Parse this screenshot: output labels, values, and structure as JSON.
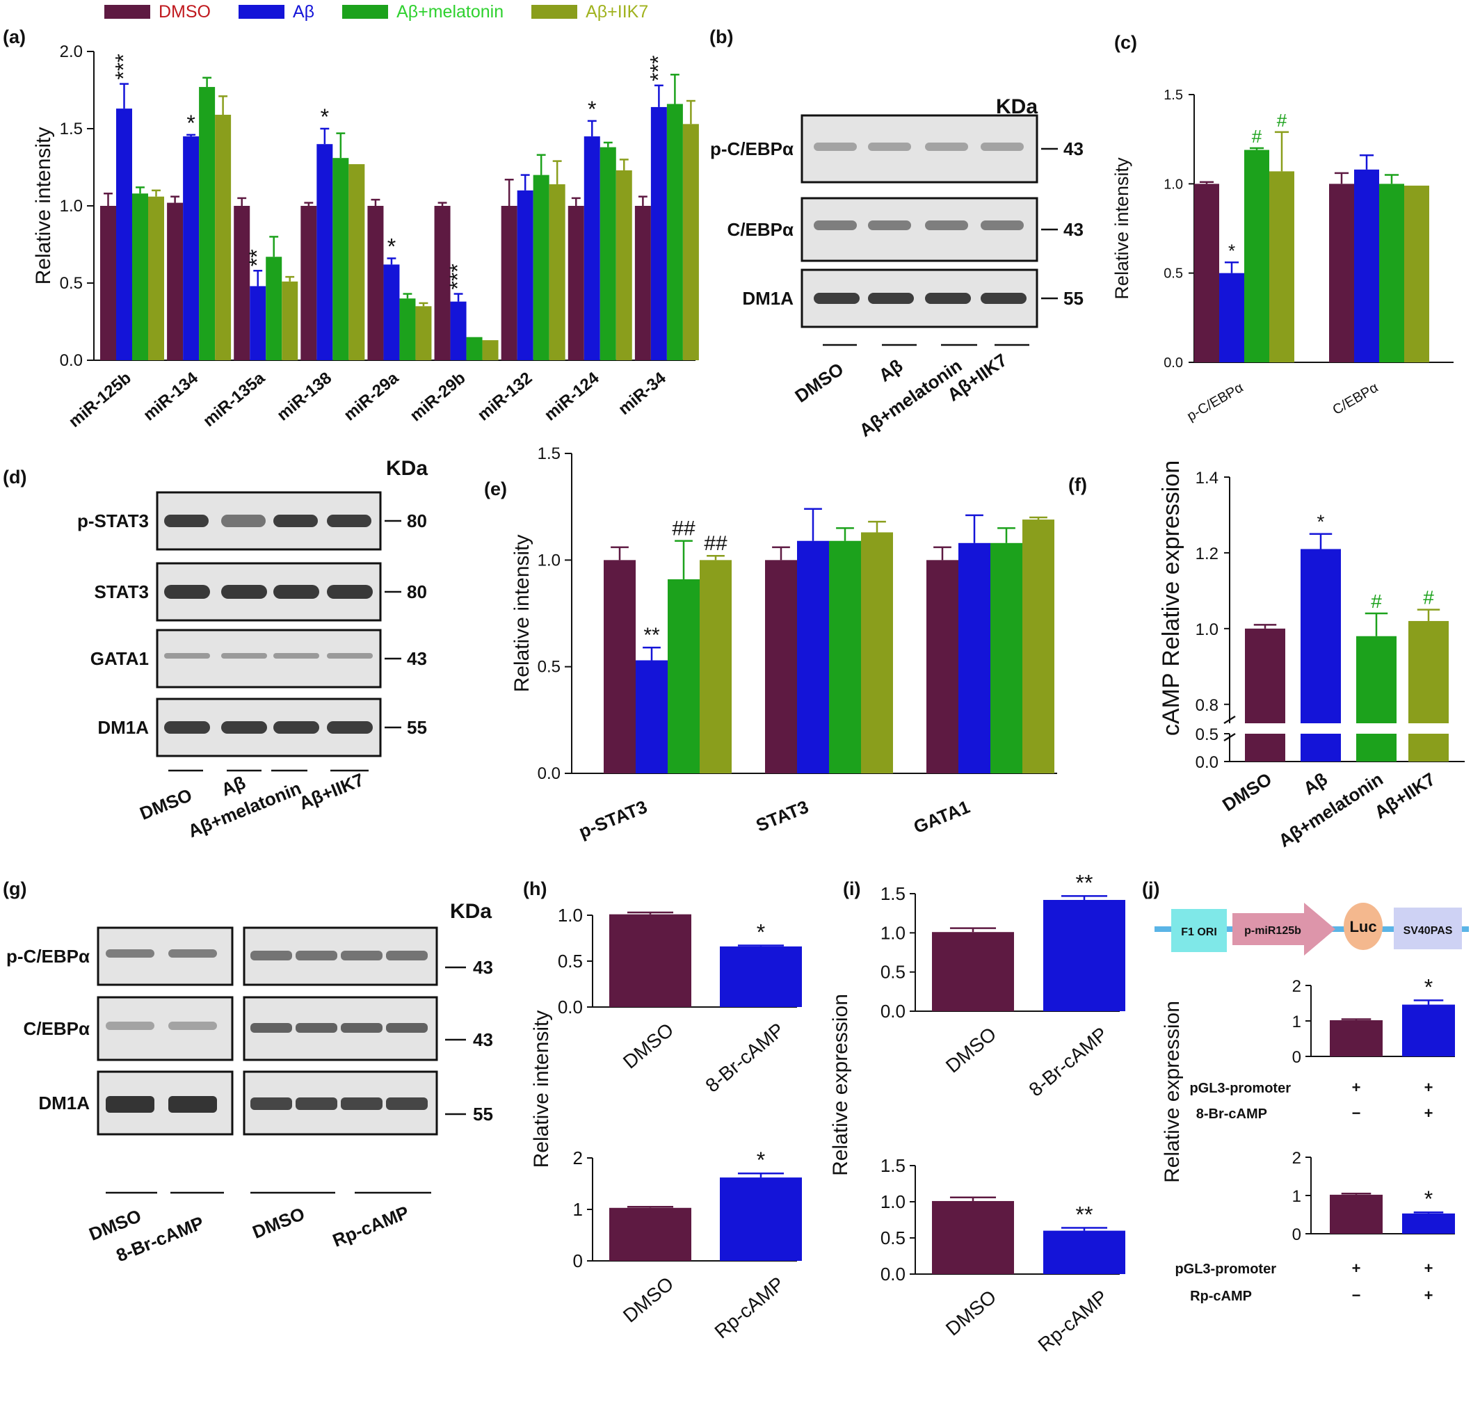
{
  "colors": {
    "DMSO": "#5e1a42",
    "Abeta": "#1414d8",
    "Abeta_melatonin": "#1ca21c",
    "Abeta_IIK7": "#8a9e1c",
    "DMSO_text": "#c0191e",
    "Abeta_text": "#1414d8",
    "Abeta_melatonin_text": "#2fd12f",
    "Abeta_IIK7_text": "#a0b21e",
    "hash": "#1ca21c"
  },
  "legend": [
    {
      "label": "DMSO",
      "color_key": "DMSO",
      "text_key": "DMSO_text"
    },
    {
      "label": "Aβ",
      "color_key": "Abeta",
      "text_key": "Abeta_text"
    },
    {
      "label": "Aβ+melatonin",
      "color_key": "Abeta_melatonin",
      "text_key": "Abeta_melatonin_text"
    },
    {
      "label": "Aβ+IIK7",
      "color_key": "Abeta_IIK7",
      "text_key": "Abeta_IIK7_text"
    }
  ],
  "panel_labels": [
    "(a)",
    "(b)",
    "(c)",
    "(d)",
    "(e)",
    "(f)",
    "(g)",
    "(h)",
    "(i)",
    "(j)"
  ],
  "blots": {
    "b": {
      "kda": "KDa",
      "rows": [
        {
          "label": "p-C/EBPα",
          "marker": "43"
        },
        {
          "label": "C/EBPα",
          "marker": "43"
        },
        {
          "label": "DM1A",
          "marker": "55"
        }
      ],
      "groups": [
        "DMSO",
        "Aβ",
        "Aβ+melatonin",
        "Aβ+IIK7"
      ]
    },
    "d": {
      "kda": "KDa",
      "rows": [
        {
          "label": "p-STAT3",
          "marker": "80"
        },
        {
          "label": "STAT3",
          "marker": "80"
        },
        {
          "label": "GATA1",
          "marker": "43"
        },
        {
          "label": "DM1A",
          "marker": "55"
        }
      ],
      "groups": [
        "DMSO",
        "Aβ",
        "Aβ+melatonin",
        "Aβ+IIK7"
      ]
    },
    "g": {
      "kda": "KDa",
      "rows": [
        {
          "label": "p-C/EBPα",
          "marker": "43"
        },
        {
          "label": "C/EBPα",
          "marker": "43"
        },
        {
          "label": "DM1A",
          "marker": "55"
        }
      ],
      "groups": [
        "DMSO",
        "8-Br-cAMP",
        "DMSO",
        "Rp-cAMP"
      ]
    }
  },
  "construct": {
    "segments": [
      "F1 ORI",
      "p-miR125b",
      "Luc",
      "SV40PAS"
    ]
  },
  "chart_data": [
    {
      "panel": "a",
      "type": "bar",
      "ylabel": "Relative intensity",
      "ylim": [
        0,
        2.0
      ],
      "yticks": [
        "0.0",
        "0.5",
        "1.0",
        "1.5",
        "2.0"
      ],
      "categories": [
        "miR-125b",
        "miR-134",
        "miR-135a",
        "miR-138",
        "miR-29a",
        "miR-29b",
        "miR-132",
        "miR-124",
        "miR-34"
      ],
      "series": [
        {
          "name": "DMSO",
          "values": [
            1.0,
            1.02,
            1.0,
            1.0,
            1.0,
            1.0,
            1.0,
            1.0,
            1.0
          ],
          "errors": [
            0.08,
            0.04,
            0.05,
            0.02,
            0.04,
            0.02,
            0.17,
            0.05,
            0.06
          ]
        },
        {
          "name": "Aβ",
          "values": [
            1.63,
            1.45,
            0.48,
            1.4,
            0.62,
            0.38,
            1.1,
            1.45,
            1.64
          ],
          "errors": [
            0.16,
            0.01,
            0.1,
            0.1,
            0.04,
            0.05,
            0.1,
            0.1,
            0.14
          ]
        },
        {
          "name": "Aβ+melatonin",
          "values": [
            1.08,
            1.77,
            0.67,
            1.31,
            0.4,
            0.15,
            1.2,
            1.38,
            1.66
          ],
          "errors": [
            0.04,
            0.06,
            0.13,
            0.16,
            0.03,
            0.0,
            0.13,
            0.03,
            0.19
          ]
        },
        {
          "name": "Aβ+IIK7",
          "values": [
            1.06,
            1.59,
            0.51,
            1.27,
            0.35,
            0.13,
            1.14,
            1.23,
            1.53
          ],
          "errors": [
            0.04,
            0.12,
            0.03,
            0.0,
            0.02,
            0.0,
            0.15,
            0.07,
            0.15
          ]
        }
      ],
      "annotations": [
        {
          "cat": 0,
          "series": 1,
          "text": "***"
        },
        {
          "cat": 1,
          "series": 1,
          "text": "*"
        },
        {
          "cat": 2,
          "series": 1,
          "text": "**"
        },
        {
          "cat": 3,
          "series": 1,
          "text": "*"
        },
        {
          "cat": 4,
          "series": 1,
          "text": "*"
        },
        {
          "cat": 5,
          "series": 1,
          "text": "***"
        },
        {
          "cat": 7,
          "series": 1,
          "text": "*"
        },
        {
          "cat": 8,
          "series": 1,
          "text": "***"
        }
      ]
    },
    {
      "panel": "c",
      "type": "bar",
      "ylabel": "Relative intensity",
      "ylim": [
        0,
        1.5
      ],
      "yticks": [
        "0.0",
        "0.5",
        "1.0",
        "1.5"
      ],
      "categories": [
        "p-C/EBPα",
        "C/EBPα"
      ],
      "series": [
        {
          "name": "DMSO",
          "values": [
            1.0,
            1.0
          ],
          "errors": [
            0.01,
            0.06
          ]
        },
        {
          "name": "Aβ",
          "values": [
            0.5,
            1.08
          ],
          "errors": [
            0.06,
            0.08
          ]
        },
        {
          "name": "Aβ+melatonin",
          "values": [
            1.19,
            1.0
          ],
          "errors": [
            0.01,
            0.05
          ]
        },
        {
          "name": "Aβ+IIK7",
          "values": [
            1.07,
            0.99
          ],
          "errors": [
            0.22,
            0.0
          ]
        }
      ],
      "annotations": [
        {
          "cat": 0,
          "series": 1,
          "text": "*"
        },
        {
          "cat": 0,
          "series": 2,
          "text": "#"
        },
        {
          "cat": 0,
          "series": 3,
          "text": "#"
        }
      ]
    },
    {
      "panel": "e",
      "type": "bar",
      "ylabel": "Relative intensity",
      "ylim": [
        0,
        1.5
      ],
      "yticks": [
        "0.0",
        "0.5",
        "1.0",
        "1.5"
      ],
      "categories": [
        "p-STAT3",
        "STAT3",
        "GATA1"
      ],
      "series": [
        {
          "name": "DMSO",
          "values": [
            1.0,
            1.0,
            1.0
          ],
          "errors": [
            0.06,
            0.06,
            0.06
          ]
        },
        {
          "name": "Aβ",
          "values": [
            0.53,
            1.09,
            1.08
          ],
          "errors": [
            0.06,
            0.15,
            0.13
          ]
        },
        {
          "name": "Aβ+melatonin",
          "values": [
            0.91,
            1.09,
            1.08
          ],
          "errors": [
            0.18,
            0.06,
            0.07
          ]
        },
        {
          "name": "Aβ+IIK7",
          "values": [
            1.0,
            1.13,
            1.19
          ],
          "errors": [
            0.02,
            0.05,
            0.01
          ]
        }
      ],
      "annotations": [
        {
          "cat": 0,
          "series": 1,
          "text": "**"
        },
        {
          "cat": 0,
          "series": 2,
          "text": "##"
        },
        {
          "cat": 0,
          "series": 3,
          "text": "##"
        }
      ]
    },
    {
      "panel": "f",
      "type": "bar",
      "ylabel": "cAMP Relative expression",
      "yticks": [
        "0.0",
        "0.5",
        "0.8",
        "1.0",
        "1.2",
        "1.4"
      ],
      "categories": [
        "DMSO",
        "Aβ",
        "Aβ+melatonin",
        "Aβ+IIK7"
      ],
      "values": [
        1.0,
        1.21,
        0.98,
        1.02
      ],
      "errors": [
        0.01,
        0.04,
        0.06,
        0.03
      ],
      "annotations": [
        "",
        "*",
        "#",
        "#"
      ]
    },
    {
      "panel": "h-top",
      "type": "bar",
      "ylabel": "Relative intensity",
      "ylim": [
        0,
        1.0
      ],
      "yticks": [
        "0.0",
        "0.5",
        "1.0"
      ],
      "categories": [
        "DMSO",
        "8-Br-cAMP"
      ],
      "values": [
        1.01,
        0.66
      ],
      "errors": [
        0.02,
        0.01
      ],
      "annotations": [
        "",
        "*"
      ]
    },
    {
      "panel": "h-bottom",
      "type": "bar",
      "ylim": [
        0,
        2
      ],
      "yticks": [
        "0",
        "1",
        "2"
      ],
      "categories": [
        "DMSO",
        "Rp-cAMP"
      ],
      "values": [
        1.03,
        1.62
      ],
      "errors": [
        0.02,
        0.08
      ],
      "annotations": [
        "",
        "*"
      ]
    },
    {
      "panel": "i-top",
      "type": "bar",
      "ylabel": "Relative expression",
      "ylim": [
        0,
        1.5
      ],
      "yticks": [
        "0.0",
        "0.5",
        "1.0",
        "1.5"
      ],
      "categories": [
        "DMSO",
        "8-Br-cAMP"
      ],
      "values": [
        1.01,
        1.42
      ],
      "errors": [
        0.05,
        0.05
      ],
      "annotations": [
        "",
        "**"
      ]
    },
    {
      "panel": "i-bottom",
      "type": "bar",
      "ylim": [
        0,
        1.5
      ],
      "yticks": [
        "0.0",
        "0.5",
        "1.0",
        "1.5"
      ],
      "categories": [
        "DMSO",
        "Rp-cAMP"
      ],
      "values": [
        1.01,
        0.6
      ],
      "errors": [
        0.05,
        0.04
      ],
      "annotations": [
        "",
        "**"
      ]
    },
    {
      "panel": "j-top",
      "type": "bar",
      "ylabel": "Relative expression",
      "ylim": [
        0,
        2
      ],
      "yticks": [
        "0",
        "1",
        "2"
      ],
      "values": [
        1.02,
        1.46
      ],
      "errors": [
        0.03,
        0.12
      ],
      "annotations": [
        "",
        "*"
      ],
      "conditions": [
        {
          "label": "pGL3-promoter",
          "signs": [
            "+",
            "+"
          ]
        },
        {
          "label": "8-Br-cAMP",
          "signs": [
            "−",
            "+"
          ]
        }
      ]
    },
    {
      "panel": "j-bottom",
      "type": "bar",
      "ylim": [
        0,
        2
      ],
      "yticks": [
        "0",
        "1",
        "2"
      ],
      "values": [
        1.02,
        0.53
      ],
      "errors": [
        0.03,
        0.03
      ],
      "annotations": [
        "",
        "*"
      ],
      "conditions": [
        {
          "label": "pGL3-promoter",
          "signs": [
            "+",
            "+"
          ]
        },
        {
          "label": "Rp-cAMP",
          "signs": [
            "−",
            "+"
          ]
        }
      ]
    }
  ]
}
